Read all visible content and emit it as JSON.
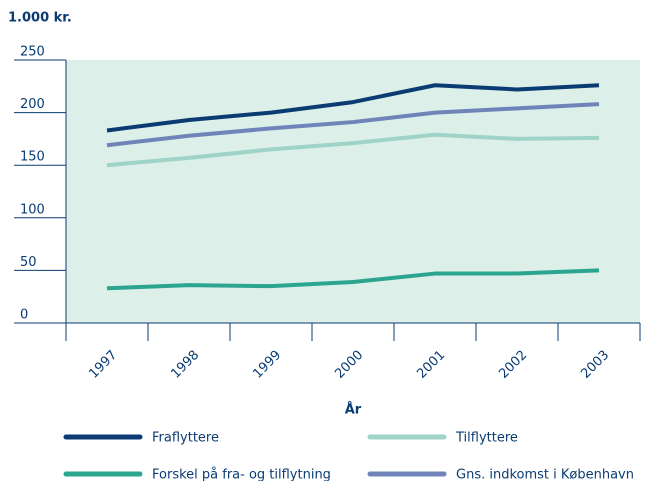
{
  "chart_data": {
    "type": "line",
    "title": "1.000 kr.",
    "x_label": "År",
    "categories": [
      "1997",
      "1998",
      "1999",
      "2000",
      "2001",
      "2002",
      "2003"
    ],
    "series": [
      {
        "name": "Fraflyttere",
        "color": "#0a3c73",
        "values": [
          183,
          193,
          200,
          210,
          226,
          222,
          226
        ]
      },
      {
        "name": "Tilflyttere",
        "color": "#9fd3c7",
        "values": [
          150,
          157,
          165,
          171,
          179,
          175,
          176
        ]
      },
      {
        "name": "Forskel på fra- og tilflytning",
        "color": "#2ba58f",
        "values": [
          33,
          36,
          35,
          39,
          47,
          47,
          50
        ]
      },
      {
        "name": "Gns. indkomst i København",
        "color": "#6f84b8",
        "values": [
          169,
          178,
          185,
          191,
          200,
          204,
          208
        ]
      }
    ],
    "ylim": [
      0,
      250
    ],
    "yticks": [
      0,
      50,
      100,
      150,
      200,
      250
    ]
  }
}
